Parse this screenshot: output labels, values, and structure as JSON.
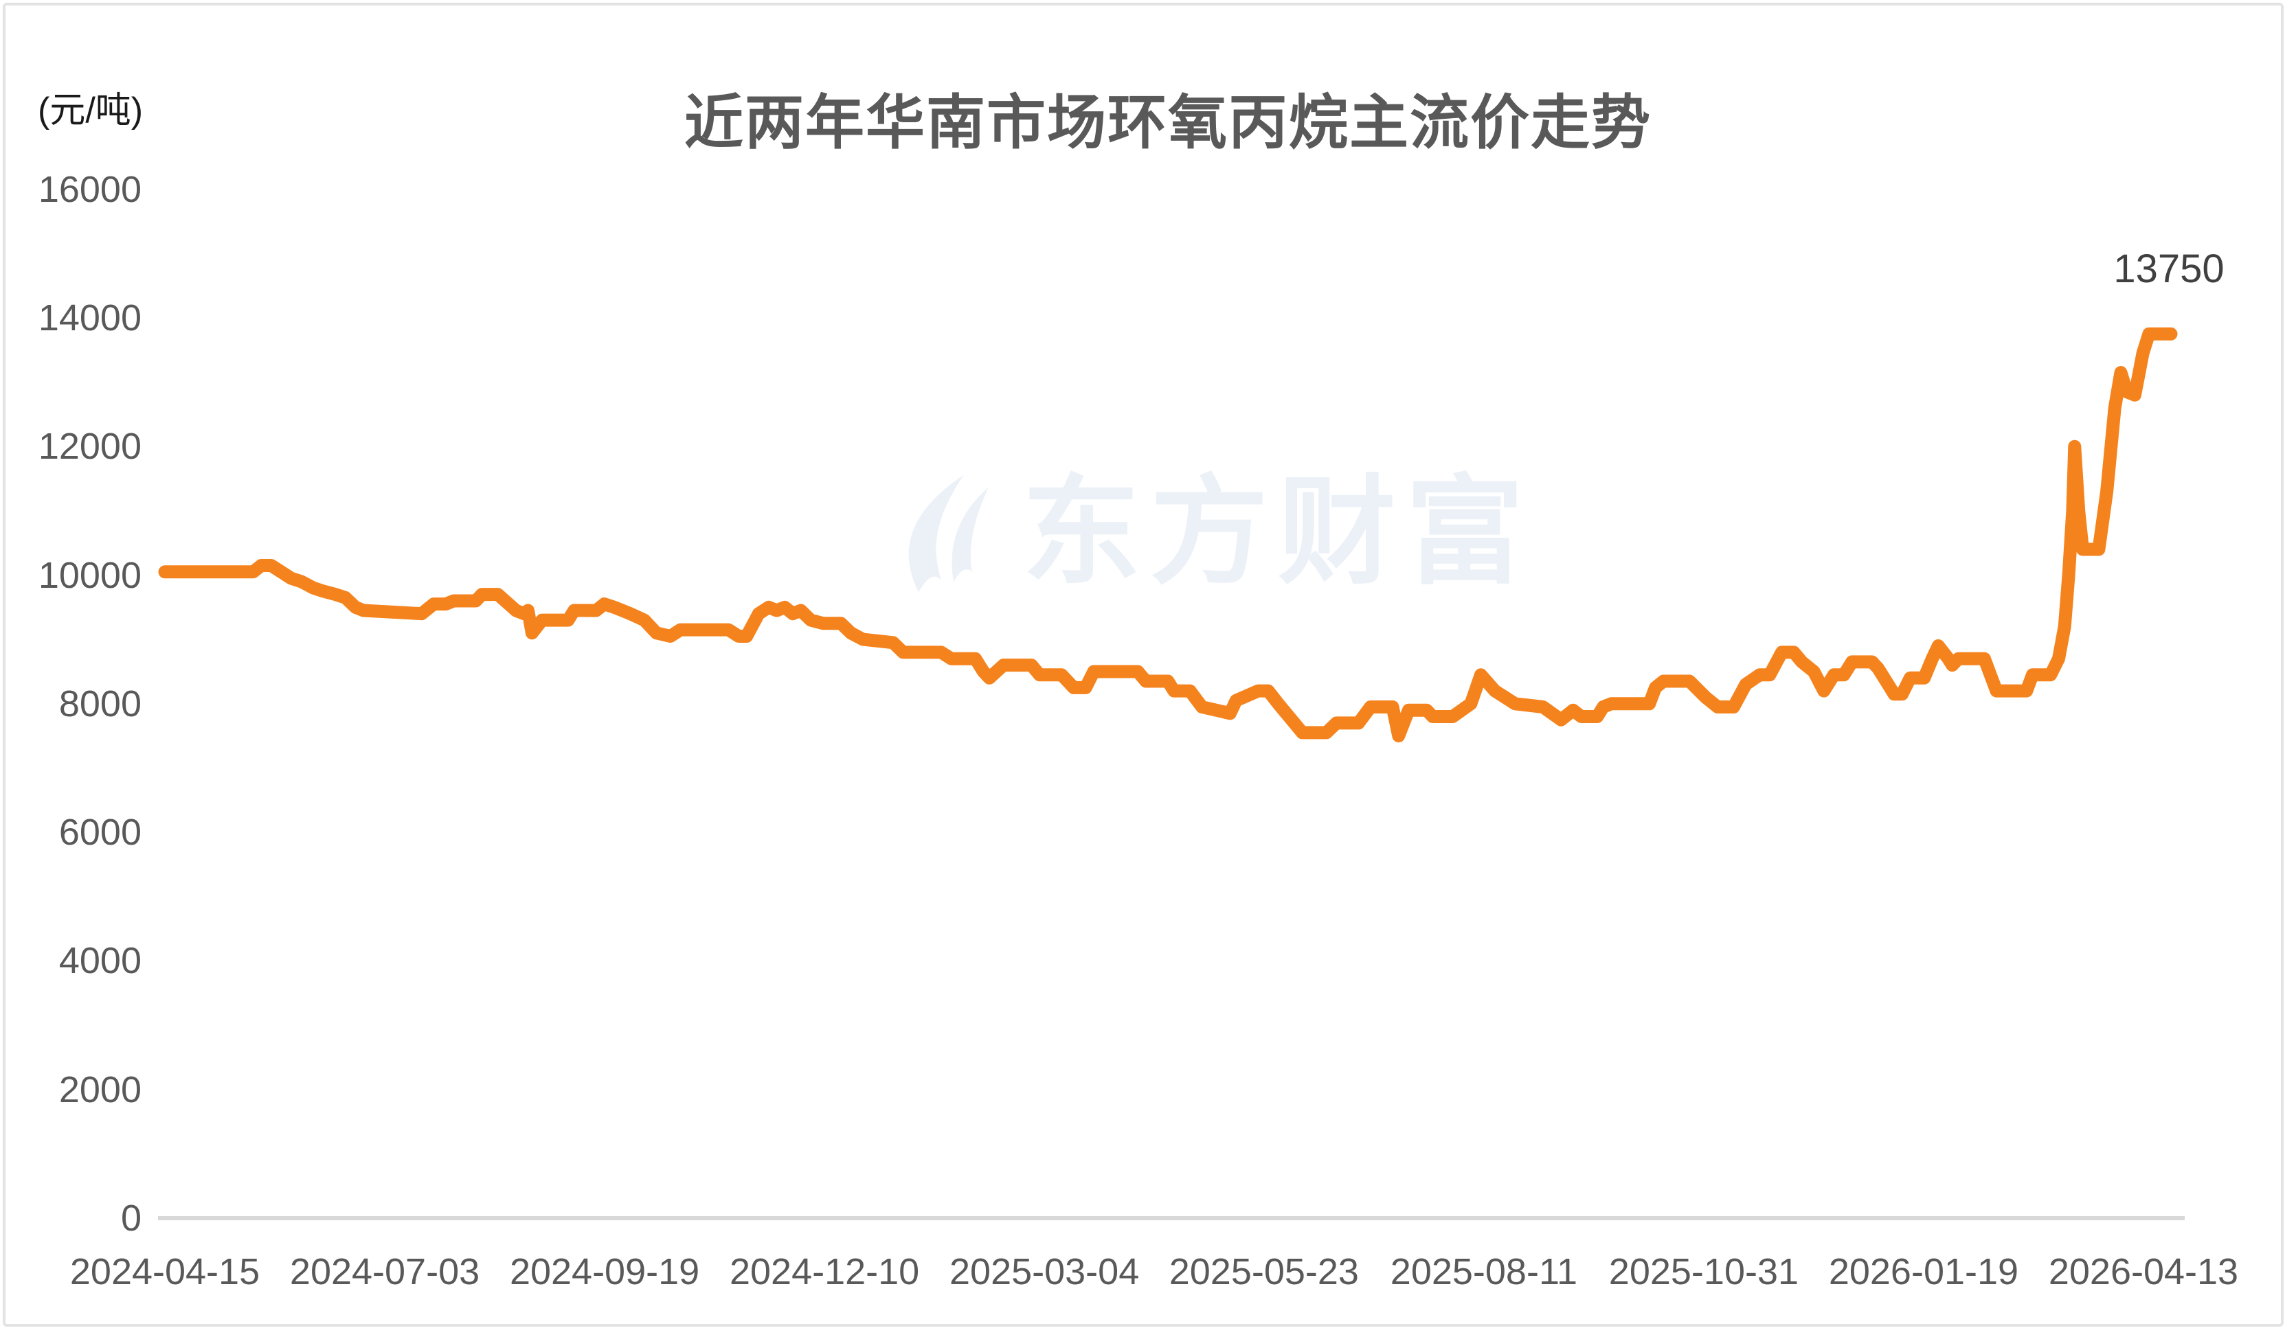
{
  "chart_data": {
    "type": "line",
    "title": "近两年华南市场环氧丙烷主流价走势",
    "unit_label": "(元/吨)",
    "ylim": [
      0,
      16000
    ],
    "grid": false,
    "legend": false,
    "line_color": "#f5831d",
    "axis_line_color": "#d8d8d8",
    "tick_label_color": "#595959",
    "last_point_label": "13750",
    "y_ticks": [
      16000,
      14000,
      12000,
      10000,
      8000,
      6000,
      4000,
      2000,
      0
    ],
    "x_ticks": [
      {
        "label": "2024-04-15",
        "f": 0.0
      },
      {
        "label": "2024-07-03",
        "f": 0.1096
      },
      {
        "label": "2024-09-19",
        "f": 0.2192
      },
      {
        "label": "2024-12-10",
        "f": 0.3288
      },
      {
        "label": "2025-03-04",
        "f": 0.4384
      },
      {
        "label": "2025-05-23",
        "f": 0.5479
      },
      {
        "label": "2025-08-11",
        "f": 0.6575
      },
      {
        "label": "2025-10-31",
        "f": 0.7671
      },
      {
        "label": "2026-01-19",
        "f": 0.8767
      },
      {
        "label": "2026-04-13",
        "f": 0.9863
      }
    ],
    "points": [
      [
        0.0,
        10050
      ],
      [
        0.02,
        10050
      ],
      [
        0.044,
        10050
      ],
      [
        0.048,
        10150
      ],
      [
        0.053,
        10150
      ],
      [
        0.058,
        10050
      ],
      [
        0.063,
        9950
      ],
      [
        0.068,
        9900
      ],
      [
        0.074,
        9800
      ],
      [
        0.079,
        9750
      ],
      [
        0.085,
        9700
      ],
      [
        0.09,
        9650
      ],
      [
        0.095,
        9500
      ],
      [
        0.099,
        9450
      ],
      [
        0.128,
        9400
      ],
      [
        0.134,
        9550
      ],
      [
        0.14,
        9550
      ],
      [
        0.144,
        9600
      ],
      [
        0.155,
        9600
      ],
      [
        0.158,
        9700
      ],
      [
        0.166,
        9700
      ],
      [
        0.175,
        9450
      ],
      [
        0.179,
        9400
      ],
      [
        0.181,
        9450
      ],
      [
        0.183,
        9100
      ],
      [
        0.188,
        9300
      ],
      [
        0.201,
        9300
      ],
      [
        0.204,
        9450
      ],
      [
        0.215,
        9450
      ],
      [
        0.219,
        9550
      ],
      [
        0.224,
        9500
      ],
      [
        0.232,
        9400
      ],
      [
        0.239,
        9300
      ],
      [
        0.245,
        9100
      ],
      [
        0.252,
        9050
      ],
      [
        0.257,
        9150
      ],
      [
        0.281,
        9150
      ],
      [
        0.286,
        9050
      ],
      [
        0.29,
        9050
      ],
      [
        0.296,
        9400
      ],
      [
        0.301,
        9500
      ],
      [
        0.305,
        9450
      ],
      [
        0.309,
        9500
      ],
      [
        0.313,
        9400
      ],
      [
        0.317,
        9450
      ],
      [
        0.322,
        9300
      ],
      [
        0.328,
        9250
      ],
      [
        0.337,
        9250
      ],
      [
        0.342,
        9100
      ],
      [
        0.348,
        9000
      ],
      [
        0.363,
        8950
      ],
      [
        0.368,
        8800
      ],
      [
        0.387,
        8800
      ],
      [
        0.392,
        8700
      ],
      [
        0.404,
        8700
      ],
      [
        0.408,
        8500
      ],
      [
        0.411,
        8400
      ],
      [
        0.418,
        8600
      ],
      [
        0.432,
        8600
      ],
      [
        0.436,
        8450
      ],
      [
        0.447,
        8450
      ],
      [
        0.45,
        8350
      ],
      [
        0.453,
        8250
      ],
      [
        0.459,
        8250
      ],
      [
        0.463,
        8500
      ],
      [
        0.485,
        8500
      ],
      [
        0.489,
        8350
      ],
      [
        0.5,
        8350
      ],
      [
        0.503,
        8200
      ],
      [
        0.511,
        8200
      ],
      [
        0.517,
        7950
      ],
      [
        0.531,
        7850
      ],
      [
        0.534,
        8050
      ],
      [
        0.545,
        8200
      ],
      [
        0.55,
        8200
      ],
      [
        0.555,
        8000
      ],
      [
        0.563,
        7700
      ],
      [
        0.567,
        7550
      ],
      [
        0.579,
        7550
      ],
      [
        0.584,
        7700
      ],
      [
        0.595,
        7700
      ],
      [
        0.601,
        7950
      ],
      [
        0.612,
        7950
      ],
      [
        0.615,
        7500
      ],
      [
        0.62,
        7900
      ],
      [
        0.629,
        7900
      ],
      [
        0.632,
        7800
      ],
      [
        0.642,
        7800
      ],
      [
        0.651,
        8000
      ],
      [
        0.656,
        8450
      ],
      [
        0.663,
        8200
      ],
      [
        0.668,
        8100
      ],
      [
        0.673,
        8000
      ],
      [
        0.687,
        7950
      ],
      [
        0.696,
        7750
      ],
      [
        0.702,
        7900
      ],
      [
        0.706,
        7800
      ],
      [
        0.714,
        7800
      ],
      [
        0.717,
        7950
      ],
      [
        0.721,
        8000
      ],
      [
        0.74,
        8000
      ],
      [
        0.743,
        8250
      ],
      [
        0.747,
        8350
      ],
      [
        0.76,
        8350
      ],
      [
        0.768,
        8100
      ],
      [
        0.774,
        7950
      ],
      [
        0.782,
        7950
      ],
      [
        0.788,
        8300
      ],
      [
        0.795,
        8450
      ],
      [
        0.8,
        8450
      ],
      [
        0.806,
        8800
      ],
      [
        0.812,
        8800
      ],
      [
        0.816,
        8650
      ],
      [
        0.822,
        8500
      ],
      [
        0.827,
        8200
      ],
      [
        0.832,
        8450
      ],
      [
        0.837,
        8450
      ],
      [
        0.841,
        8650
      ],
      [
        0.851,
        8650
      ],
      [
        0.854,
        8550
      ],
      [
        0.858,
        8350
      ],
      [
        0.862,
        8150
      ],
      [
        0.866,
        8150
      ],
      [
        0.87,
        8400
      ],
      [
        0.877,
        8400
      ],
      [
        0.881,
        8700
      ],
      [
        0.884,
        8900
      ],
      [
        0.889,
        8700
      ],
      [
        0.891,
        8600
      ],
      [
        0.894,
        8700
      ],
      [
        0.907,
        8700
      ],
      [
        0.91,
        8450
      ],
      [
        0.913,
        8200
      ],
      [
        0.928,
        8200
      ],
      [
        0.931,
        8450
      ],
      [
        0.94,
        8450
      ],
      [
        0.944,
        8700
      ],
      [
        0.947,
        9200
      ],
      [
        0.949,
        10000
      ],
      [
        0.951,
        11000
      ],
      [
        0.952,
        12000
      ],
      [
        0.954,
        11000
      ],
      [
        0.956,
        10400
      ],
      [
        0.964,
        10400
      ],
      [
        0.968,
        11300
      ],
      [
        0.972,
        12600
      ],
      [
        0.975,
        13150
      ],
      [
        0.978,
        12850
      ],
      [
        0.982,
        12800
      ],
      [
        0.986,
        13450
      ],
      [
        0.989,
        13750
      ],
      [
        1.0,
        13750
      ]
    ]
  },
  "watermark": {
    "text": "东方财富",
    "color": "#ecf1f8"
  }
}
